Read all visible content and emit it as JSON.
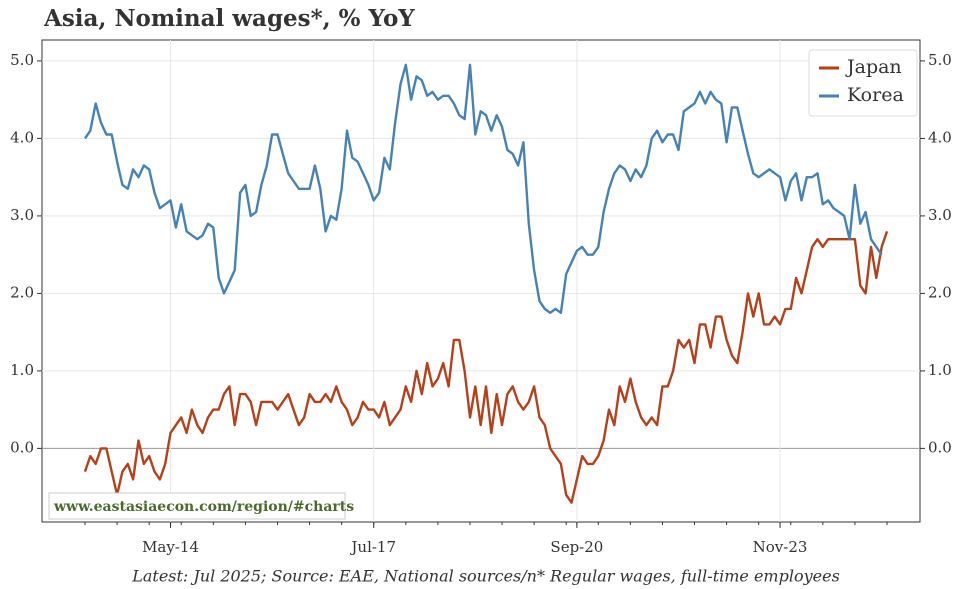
{
  "chart_data": {
    "type": "line",
    "title": "Asia, Nominal wages*, % YoY",
    "footnote": "Latest: Jul 2025; Source: EAE, National sources/n* Regular wages, full-time employees",
    "watermark": "www.eastasiaecon.com/region/#charts",
    "categories": [
      null,
      null,
      null,
      null,
      null,
      null,
      null,
      null,
      null,
      null,
      null,
      null,
      null,
      null,
      null,
      null,
      "May-14",
      null,
      null,
      null,
      null,
      null,
      null,
      null,
      null,
      null,
      null,
      null,
      null,
      null,
      null,
      null,
      null,
      null,
      null,
      null,
      null,
      null,
      null,
      null,
      null,
      null,
      null,
      null,
      null,
      null,
      null,
      null,
      null,
      null,
      null,
      null,
      null,
      null,
      "Jul-17",
      null,
      null,
      null,
      null,
      null,
      null,
      null,
      null,
      null,
      null,
      null,
      null,
      null,
      null,
      null,
      null,
      null,
      null,
      null,
      null,
      null,
      null,
      null,
      null,
      null,
      null,
      null,
      null,
      null,
      null,
      null,
      null,
      null,
      null,
      null,
      null,
      null,
      "Sep-20",
      null,
      null,
      null,
      null,
      null,
      null,
      null,
      null,
      null,
      null,
      null,
      null,
      null,
      null,
      null,
      null,
      null,
      null,
      null,
      null,
      null,
      null,
      null,
      null,
      null,
      null,
      null,
      null,
      null,
      null,
      null,
      null,
      null,
      null,
      null,
      null,
      null,
      "Nov-23",
      null,
      null,
      null,
      null,
      null,
      null,
      null,
      null,
      null,
      null,
      null,
      null,
      null,
      null,
      null,
      null,
      null,
      null,
      null,
      null
    ],
    "series": [
      {
        "name": "Japan",
        "color": "#b5401a",
        "values": [
          -0.3,
          -0.1,
          -0.2,
          0.0,
          0.0,
          -0.3,
          -0.6,
          -0.3,
          -0.2,
          -0.4,
          0.1,
          -0.2,
          -0.1,
          -0.3,
          -0.4,
          -0.2,
          0.2,
          0.3,
          0.4,
          0.2,
          0.5,
          0.3,
          0.2,
          0.4,
          0.5,
          0.5,
          0.7,
          0.8,
          0.3,
          0.7,
          0.7,
          0.6,
          0.3,
          0.6,
          0.6,
          0.6,
          0.5,
          0.6,
          0.7,
          0.5,
          0.3,
          0.4,
          0.7,
          0.6,
          0.6,
          0.7,
          0.6,
          0.8,
          0.6,
          0.5,
          0.3,
          0.4,
          0.6,
          0.5,
          0.5,
          0.4,
          0.6,
          0.3,
          0.4,
          0.5,
          0.8,
          0.6,
          1.0,
          0.7,
          1.1,
          0.8,
          0.9,
          1.1,
          0.8,
          1.4,
          1.4,
          1.0,
          0.4,
          0.8,
          0.3,
          0.8,
          0.2,
          0.7,
          0.3,
          0.7,
          0.8,
          0.6,
          0.5,
          0.6,
          0.8,
          0.4,
          0.3,
          0.0,
          -0.1,
          -0.2,
          -0.6,
          -0.7,
          -0.4,
          -0.1,
          -0.2,
          -0.2,
          -0.1,
          0.1,
          0.5,
          0.3,
          0.8,
          0.6,
          0.9,
          0.6,
          0.4,
          0.3,
          0.4,
          0.3,
          0.8,
          0.8,
          1.0,
          1.4,
          1.3,
          1.4,
          1.1,
          1.6,
          1.6,
          1.3,
          1.7,
          1.7,
          1.4,
          1.2,
          1.1,
          1.5,
          2.0,
          1.7,
          2.0,
          1.6,
          1.6,
          1.7,
          1.6,
          1.8,
          1.8,
          2.2,
          2.0,
          2.3,
          2.6,
          2.7,
          2.6,
          2.7,
          2.7,
          2.7,
          2.7,
          2.7,
          2.7,
          2.1,
          2.0,
          2.6,
          2.2,
          2.6,
          2.8
        ]
      },
      {
        "name": "Korea",
        "color": "#4682b4",
        "values": [
          4.0,
          4.1,
          4.45,
          4.2,
          4.05,
          4.05,
          3.7,
          3.4,
          3.35,
          3.6,
          3.5,
          3.65,
          3.6,
          3.3,
          3.1,
          3.15,
          3.2,
          2.85,
          3.15,
          2.8,
          2.75,
          2.7,
          2.75,
          2.9,
          2.85,
          2.2,
          2.0,
          2.15,
          2.3,
          3.3,
          3.4,
          3.0,
          3.05,
          3.4,
          3.65,
          4.05,
          4.05,
          3.8,
          3.55,
          3.45,
          3.35,
          3.35,
          3.35,
          3.65,
          3.35,
          2.8,
          3.0,
          2.95,
          3.35,
          4.1,
          3.75,
          3.7,
          3.55,
          3.4,
          3.2,
          3.3,
          3.75,
          3.6,
          4.2,
          4.7,
          4.95,
          4.5,
          4.8,
          4.75,
          4.55,
          4.6,
          4.5,
          4.55,
          4.55,
          4.45,
          4.3,
          4.25,
          4.95,
          4.05,
          4.35,
          4.3,
          4.1,
          4.3,
          4.15,
          3.85,
          3.8,
          3.65,
          3.95,
          2.9,
          2.3,
          1.9,
          1.8,
          1.75,
          1.8,
          1.75,
          2.25,
          2.4,
          2.55,
          2.6,
          2.5,
          2.5,
          2.6,
          3.05,
          3.35,
          3.55,
          3.65,
          3.6,
          3.45,
          3.6,
          3.5,
          3.65,
          4.0,
          4.1,
          3.95,
          4.05,
          4.05,
          3.85,
          4.35,
          4.4,
          4.45,
          4.6,
          4.45,
          4.6,
          4.5,
          4.45,
          3.95,
          4.4,
          4.4,
          4.1,
          3.8,
          3.55,
          3.5,
          3.55,
          3.6,
          3.55,
          3.5,
          3.2,
          3.45,
          3.55,
          3.2,
          3.5,
          3.5,
          3.55,
          3.15,
          3.2,
          3.1,
          3.05,
          3.0,
          2.7,
          3.4,
          2.9,
          3.05,
          2.7,
          2.6,
          2.5,
          null
        ]
      }
    ],
    "ylim": [
      -0.95,
      5.27
    ],
    "yticks": [
      {
        "value": 0,
        "label": "0.0"
      },
      {
        "value": 1,
        "label": "1.0"
      },
      {
        "value": 2,
        "label": "2.0"
      },
      {
        "value": 3,
        "label": "3.0"
      },
      {
        "value": 4,
        "label": "4.0"
      },
      {
        "value": 5,
        "label": "5.0"
      }
    ],
    "y2lim": [
      -0.95,
      5.27
    ],
    "y2ticks": [
      {
        "value": 0,
        "label": "0.0"
      },
      {
        "value": 1,
        "label": "1.0"
      },
      {
        "value": 2,
        "label": "2.0"
      },
      {
        "value": 3,
        "label": "3.0"
      },
      {
        "value": 4,
        "label": "4.0"
      },
      {
        "value": 5,
        "label": "5.0"
      }
    ],
    "grid": true,
    "legend": "upper right"
  }
}
